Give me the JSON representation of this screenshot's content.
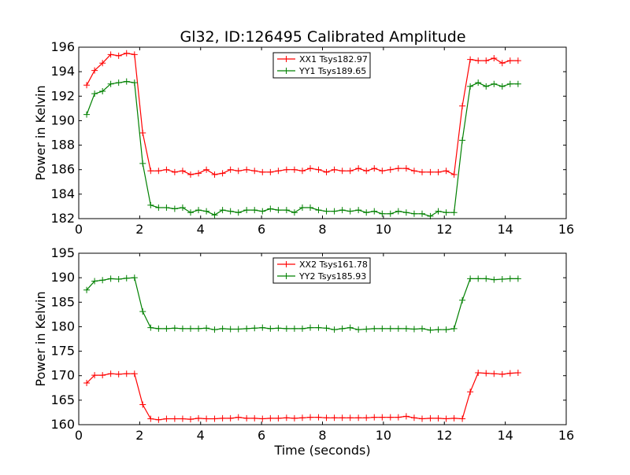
{
  "figure": {
    "title": "Gl32, ID:126495 Calibrated Amplitude"
  },
  "chart_data": [
    {
      "type": "line",
      "title": "Gl32, ID:126495 Calibrated Amplitude",
      "xlabel": "",
      "ylabel": "Power in Kelvin",
      "xlim": [
        0,
        16
      ],
      "ylim": [
        182,
        196
      ],
      "xticks": [
        0,
        2,
        4,
        6,
        8,
        10,
        12,
        14,
        16
      ],
      "yticks": [
        182,
        184,
        186,
        188,
        190,
        192,
        194,
        196
      ],
      "grid": false,
      "legend_position": "top-center",
      "x": [
        0.26,
        0.52,
        0.78,
        1.05,
        1.31,
        1.57,
        1.83,
        2.1,
        2.36,
        2.62,
        2.88,
        3.15,
        3.41,
        3.67,
        3.93,
        4.19,
        4.46,
        4.72,
        4.98,
        5.24,
        5.51,
        5.77,
        6.03,
        6.29,
        6.55,
        6.82,
        7.08,
        7.34,
        7.6,
        7.87,
        8.13,
        8.39,
        8.65,
        8.91,
        9.18,
        9.44,
        9.7,
        9.96,
        10.23,
        10.49,
        10.75,
        11.01,
        11.27,
        11.54,
        11.8,
        12.06,
        12.32,
        12.59,
        12.85,
        13.11,
        13.37,
        13.63,
        13.9,
        14.16,
        14.42
      ],
      "series": [
        {
          "name": "XX1 Tsys182.97",
          "color": "#ff0000",
          "values": [
            192.9,
            194.1,
            194.7,
            195.4,
            195.3,
            195.5,
            195.4,
            189.0,
            185.9,
            185.9,
            186.0,
            185.8,
            185.9,
            185.6,
            185.7,
            186.0,
            185.6,
            185.7,
            186.0,
            185.9,
            186.0,
            185.9,
            185.8,
            185.8,
            185.9,
            186.0,
            186.0,
            185.9,
            186.1,
            186.0,
            185.8,
            186.0,
            185.9,
            185.9,
            186.1,
            185.9,
            186.1,
            185.9,
            186.0,
            186.1,
            186.1,
            185.9,
            185.8,
            185.8,
            185.8,
            185.9,
            185.6,
            191.2,
            195.0,
            194.9,
            194.9,
            195.1,
            194.7,
            194.9,
            194.9
          ]
        },
        {
          "name": "YY1 Tsys189.65",
          "color": "#008000",
          "values": [
            190.5,
            192.2,
            192.4,
            193.0,
            193.1,
            193.2,
            193.1,
            186.5,
            183.1,
            182.9,
            182.9,
            182.8,
            182.9,
            182.5,
            182.7,
            182.6,
            182.3,
            182.7,
            182.6,
            182.5,
            182.7,
            182.7,
            182.6,
            182.8,
            182.7,
            182.7,
            182.5,
            182.9,
            182.9,
            182.7,
            182.6,
            182.6,
            182.7,
            182.6,
            182.7,
            182.5,
            182.6,
            182.4,
            182.4,
            182.6,
            182.5,
            182.4,
            182.4,
            182.2,
            182.6,
            182.5,
            182.5,
            188.4,
            192.8,
            193.1,
            192.8,
            193.0,
            192.8,
            193.0,
            193.0
          ]
        }
      ]
    },
    {
      "type": "line",
      "title": "",
      "xlabel": "Time (seconds)",
      "ylabel": "Power in Kelvin",
      "xlim": [
        0,
        16
      ],
      "ylim": [
        160,
        195
      ],
      "xticks": [
        0,
        2,
        4,
        6,
        8,
        10,
        12,
        14,
        16
      ],
      "yticks": [
        160,
        165,
        170,
        175,
        180,
        185,
        190,
        195
      ],
      "grid": false,
      "legend_position": "top-center",
      "x": [
        0.26,
        0.52,
        0.78,
        1.05,
        1.31,
        1.57,
        1.83,
        2.1,
        2.36,
        2.62,
        2.88,
        3.15,
        3.41,
        3.67,
        3.93,
        4.19,
        4.46,
        4.72,
        4.98,
        5.24,
        5.51,
        5.77,
        6.03,
        6.29,
        6.55,
        6.82,
        7.08,
        7.34,
        7.6,
        7.87,
        8.13,
        8.39,
        8.65,
        8.91,
        9.18,
        9.44,
        9.7,
        9.96,
        10.23,
        10.49,
        10.75,
        11.01,
        11.27,
        11.54,
        11.8,
        12.06,
        12.32,
        12.59,
        12.85,
        13.11,
        13.37,
        13.63,
        13.9,
        14.16,
        14.42
      ],
      "series": [
        {
          "name": "XX2 Tsys161.78",
          "color": "#ff0000",
          "values": [
            168.5,
            170.1,
            170.1,
            170.4,
            170.3,
            170.4,
            170.4,
            164.1,
            161.2,
            161.0,
            161.2,
            161.2,
            161.2,
            161.1,
            161.3,
            161.2,
            161.2,
            161.3,
            161.3,
            161.5,
            161.3,
            161.3,
            161.2,
            161.3,
            161.3,
            161.4,
            161.3,
            161.4,
            161.5,
            161.5,
            161.4,
            161.4,
            161.4,
            161.4,
            161.4,
            161.4,
            161.5,
            161.5,
            161.5,
            161.5,
            161.7,
            161.4,
            161.2,
            161.3,
            161.3,
            161.2,
            161.3,
            161.2,
            166.7,
            170.6,
            170.5,
            170.4,
            170.3,
            170.5,
            170.6
          ]
        },
        {
          "name": "YY2 Tsys185.93",
          "color": "#008000",
          "values": [
            187.5,
            189.3,
            189.5,
            189.8,
            189.7,
            189.9,
            190.0,
            183.1,
            179.8,
            179.6,
            179.6,
            179.7,
            179.6,
            179.6,
            179.6,
            179.7,
            179.4,
            179.6,
            179.5,
            179.5,
            179.6,
            179.7,
            179.8,
            179.6,
            179.7,
            179.6,
            179.6,
            179.6,
            179.8,
            179.8,
            179.7,
            179.4,
            179.6,
            179.8,
            179.4,
            179.5,
            179.6,
            179.6,
            179.6,
            179.6,
            179.6,
            179.5,
            179.6,
            179.3,
            179.4,
            179.4,
            179.6,
            185.4,
            189.8,
            189.8,
            189.8,
            189.6,
            189.7,
            189.8,
            189.8
          ]
        }
      ]
    }
  ]
}
